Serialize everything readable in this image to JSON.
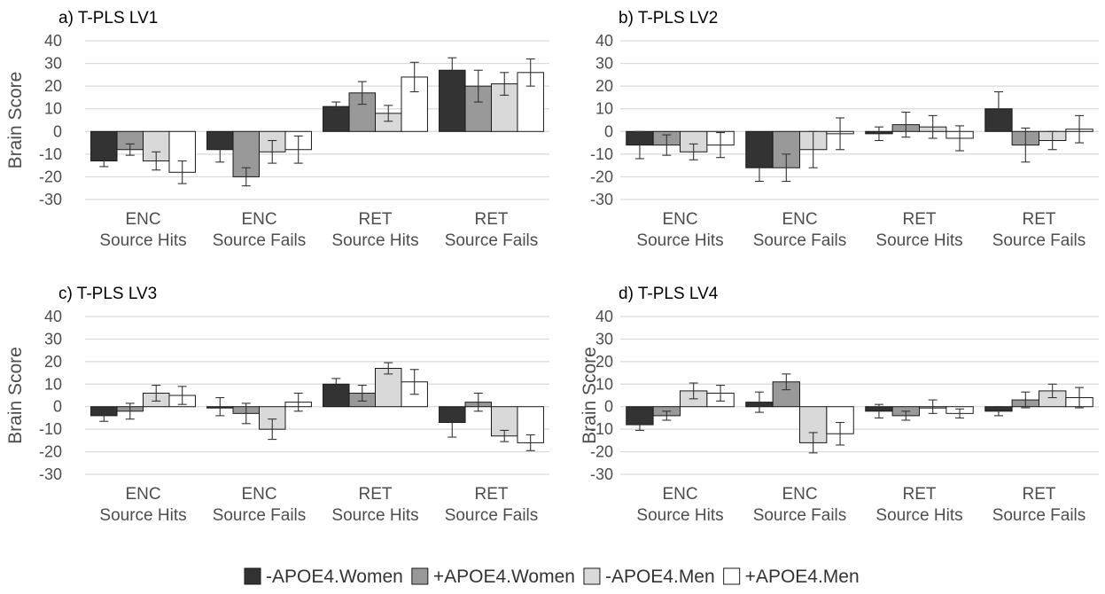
{
  "chart_data": [
    {
      "type": "bar",
      "title": "a) T-PLS LV1",
      "ylabel": "Brain Score",
      "ylim": [
        -30,
        40
      ],
      "yticks": [
        40,
        30,
        20,
        10,
        0,
        -10,
        -20,
        -30
      ],
      "categories": [
        [
          "ENC",
          "Source Hits"
        ],
        [
          "ENC",
          "Source Fails"
        ],
        [
          "RET",
          "Source Hits"
        ],
        [
          "RET",
          "Source Fails"
        ]
      ],
      "series": [
        {
          "name": "-APOE4.Women",
          "color": "#333333",
          "values": [
            -13,
            -8,
            11,
            27
          ],
          "errors": [
            2.5,
            5.5,
            2.0,
            5.5
          ]
        },
        {
          "name": "+APOE4.Women",
          "color": "#999999",
          "values": [
            -8,
            -20,
            17,
            20
          ],
          "errors": [
            2.5,
            4.0,
            5.0,
            7.0
          ]
        },
        {
          "name": "-APOE4.Men",
          "color": "#d9d9d9",
          "values": [
            -13,
            -9,
            8,
            21
          ],
          "errors": [
            4.0,
            5.0,
            3.5,
            5.0
          ]
        },
        {
          "name": "+APOE4.Men",
          "color": "#ffffff",
          "values": [
            -18,
            -8,
            24,
            26
          ],
          "errors": [
            5.0,
            6.0,
            6.5,
            6.0
          ]
        }
      ]
    },
    {
      "type": "bar",
      "title": "b) T-PLS LV2",
      "ylabel": "",
      "ylim": [
        -30,
        40
      ],
      "yticks": [
        40,
        30,
        20,
        10,
        0,
        -10,
        -20,
        -30
      ],
      "categories": [
        [
          "ENC",
          "Source Hits"
        ],
        [
          "ENC",
          "Source Fails"
        ],
        [
          "RET",
          "Source Hits"
        ],
        [
          "RET",
          "Source Fails"
        ]
      ],
      "series": [
        {
          "name": "-APOE4.Women",
          "color": "#333333",
          "values": [
            -6,
            -16,
            -1,
            10
          ],
          "errors": [
            6.0,
            6.0,
            3.0,
            7.5
          ]
        },
        {
          "name": "+APOE4.Women",
          "color": "#999999",
          "values": [
            -6,
            -16,
            3,
            -6
          ],
          "errors": [
            4.5,
            6.0,
            5.5,
            7.5
          ]
        },
        {
          "name": "-APOE4.Men",
          "color": "#d9d9d9",
          "values": [
            -9,
            -8,
            2,
            -4
          ],
          "errors": [
            3.5,
            8.0,
            5.0,
            4.0
          ]
        },
        {
          "name": "+APOE4.Men",
          "color": "#ffffff",
          "values": [
            -6,
            -1,
            -3,
            1
          ],
          "errors": [
            5.5,
            7.0,
            5.5,
            6.0
          ]
        }
      ]
    },
    {
      "type": "bar",
      "title": "c) T-PLS LV3",
      "ylabel": "Brain Score",
      "ylim": [
        -30,
        40
      ],
      "yticks": [
        40,
        30,
        20,
        10,
        0,
        -10,
        -20,
        -30
      ],
      "categories": [
        [
          "ENC",
          "Source Hits"
        ],
        [
          "ENC",
          "Source Fails"
        ],
        [
          "RET",
          "Source Hits"
        ],
        [
          "RET",
          "Source Fails"
        ]
      ],
      "series": [
        {
          "name": "-APOE4.Women",
          "color": "#333333",
          "values": [
            -4,
            0,
            10,
            -7
          ],
          "errors": [
            2.5,
            4.0,
            2.5,
            6.5
          ]
        },
        {
          "name": "+APOE4.Women",
          "color": "#999999",
          "values": [
            -2,
            -3,
            6,
            2
          ],
          "errors": [
            3.5,
            4.5,
            3.5,
            4.0
          ]
        },
        {
          "name": "-APOE4.Men",
          "color": "#d9d9d9",
          "values": [
            6,
            -10,
            17,
            -13
          ],
          "errors": [
            3.5,
            4.5,
            2.5,
            2.5
          ]
        },
        {
          "name": "+APOE4.Men",
          "color": "#ffffff",
          "values": [
            5,
            2,
            11,
            -16
          ],
          "errors": [
            4.0,
            4.0,
            5.5,
            3.5
          ]
        }
      ]
    },
    {
      "type": "bar",
      "title": "d) T-PLS LV4",
      "ylabel": "Brain Score",
      "ylim": [
        -30,
        40
      ],
      "yticks": [
        40,
        30,
        20,
        10,
        0,
        -10,
        -20,
        -30
      ],
      "categories": [
        [
          "ENC",
          "Source Hits"
        ],
        [
          "ENC",
          "Source Fails"
        ],
        [
          "RET",
          "Source Hits"
        ],
        [
          "RET",
          "Source Fails"
        ]
      ],
      "series": [
        {
          "name": "-APOE4.Women",
          "color": "#333333",
          "values": [
            -8,
            2,
            -2,
            -2
          ],
          "errors": [
            2.5,
            4.5,
            3.0,
            2.0
          ]
        },
        {
          "name": "+APOE4.Women",
          "color": "#999999",
          "values": [
            -4,
            11,
            -4,
            3
          ],
          "errors": [
            2.0,
            3.5,
            2.0,
            3.5
          ]
        },
        {
          "name": "-APOE4.Men",
          "color": "#d9d9d9",
          "values": [
            7,
            -16,
            0,
            7
          ],
          "errors": [
            3.5,
            4.5,
            3.0,
            3.0
          ]
        },
        {
          "name": "+APOE4.Men",
          "color": "#ffffff",
          "values": [
            6,
            -12,
            -3,
            4
          ],
          "errors": [
            3.5,
            5.0,
            2.0,
            4.5
          ]
        }
      ]
    }
  ],
  "legend": [
    {
      "label": "-APOE4.Women",
      "color": "#333333"
    },
    {
      "label": "+APOE4.Women",
      "color": "#999999"
    },
    {
      "label": "-APOE4.Men",
      "color": "#d9d9d9"
    },
    {
      "label": "+APOE4.Men",
      "color": "#ffffff"
    }
  ],
  "colors": {
    "bar_stroke": "#1a1a1a",
    "gridline": "#d9d9d9",
    "text": "#4d4d4d"
  }
}
